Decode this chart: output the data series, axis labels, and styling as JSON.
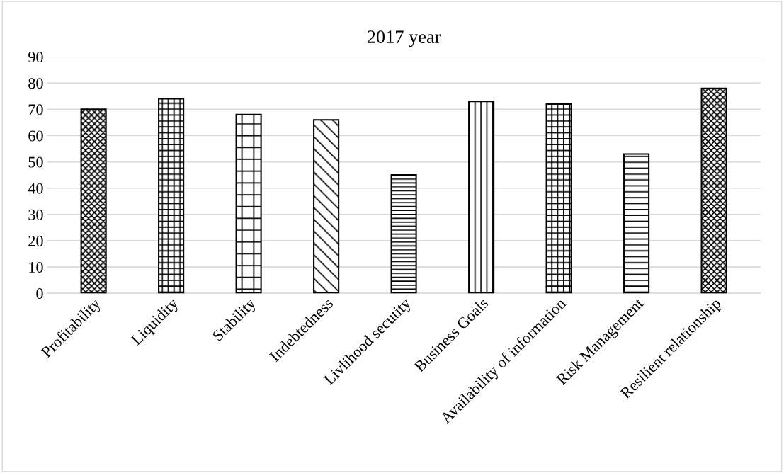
{
  "chart_data": {
    "type": "bar",
    "title": "2017 year",
    "categories": [
      "Profitability",
      "Liquidity",
      "Stability",
      "Indebtedness",
      "Livlihood secutity",
      "Business Goals",
      "Availability of information",
      "Risk Management",
      "Resilient relationship"
    ],
    "values": [
      70,
      74,
      68,
      66,
      45,
      73,
      72,
      53,
      78
    ],
    "color": "#000000",
    "ylim": [
      0,
      90
    ],
    "yticks": [
      0,
      10,
      20,
      30,
      40,
      50,
      60,
      70,
      80,
      90
    ],
    "grid": "y"
  }
}
